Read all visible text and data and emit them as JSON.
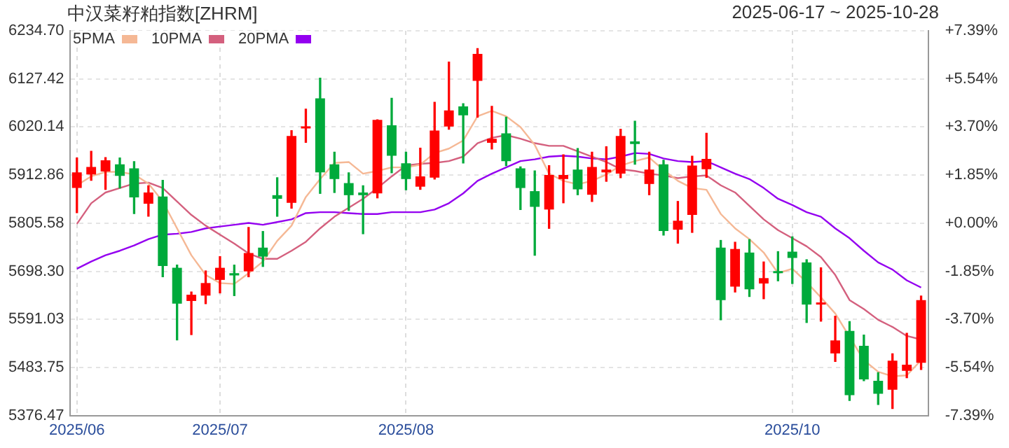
{
  "chart_data": {
    "type": "candlestick",
    "title": "中汉菜籽粕指数[ZHRM]",
    "subtitle": "2025-06-17 ~ 2025-10-28",
    "categories": [
      "2025/06",
      null,
      null,
      null,
      null,
      null,
      null,
      null,
      null,
      null,
      "2025/07",
      null,
      null,
      null,
      null,
      null,
      null,
      null,
      null,
      null,
      null,
      null,
      null,
      "2025/08",
      null,
      null,
      null,
      null,
      null,
      null,
      null,
      null,
      null,
      null,
      null,
      null,
      null,
      null,
      null,
      null,
      null,
      null,
      null,
      null,
      null,
      null,
      null,
      null,
      null,
      null,
      "2025/10",
      null,
      null,
      null,
      null,
      null,
      null,
      null,
      null,
      null
    ],
    "ohlc": [
      [
        5884,
        5951,
        5829,
        5919
      ],
      [
        5914,
        5966,
        5901,
        5931
      ],
      [
        5921,
        5952,
        5881,
        5946
      ],
      [
        5937,
        5951,
        5884,
        5911
      ],
      [
        5928,
        5943,
        5827,
        5863
      ],
      [
        5849,
        5889,
        5821,
        5874
      ],
      [
        5865,
        5901,
        5686,
        5710
      ],
      [
        5706,
        5712,
        5545,
        5626
      ],
      [
        5632,
        5652,
        5557,
        5646
      ],
      [
        5644,
        5699,
        5626,
        5672
      ],
      [
        5679,
        5731,
        5650,
        5706
      ],
      [
        5694,
        5712,
        5644,
        5689
      ],
      [
        5698,
        5796,
        5686,
        5739
      ],
      [
        5751,
        5787,
        5709,
        5731
      ],
      [
        5868,
        5907,
        5821,
        5860
      ],
      [
        5851,
        6012,
        5839,
        6000
      ],
      [
        6017,
        6060,
        5986,
        6019
      ],
      [
        6084,
        6129,
        5872,
        5919
      ],
      [
        5937,
        5964,
        5874,
        5904
      ],
      [
        5895,
        5918,
        5834,
        5868
      ],
      [
        5874,
        5889,
        5782,
        5868
      ],
      [
        5872,
        6036,
        5862,
        6036
      ],
      [
        6024,
        6084,
        5918,
        5956
      ],
      [
        5939,
        5964,
        5880,
        5904
      ],
      [
        5887,
        5973,
        5881,
        5910
      ],
      [
        5907,
        6075,
        5904,
        6012
      ],
      [
        6021,
        6165,
        6015,
        6057
      ],
      [
        6066,
        6072,
        5940,
        6046
      ],
      [
        6123,
        6195,
        6042,
        6183
      ],
      [
        5985,
        6066,
        5971,
        5994
      ],
      [
        6006,
        6042,
        5934,
        5944
      ],
      [
        5928,
        5931,
        5836,
        5884
      ],
      [
        5877,
        5922,
        5734,
        5842
      ],
      [
        5836,
        5934,
        5794,
        5913
      ],
      [
        5904,
        5958,
        5851,
        5913
      ],
      [
        5925,
        5972,
        5869,
        5881
      ],
      [
        5869,
        5964,
        5854,
        5931
      ],
      [
        5919,
        5976,
        5899,
        5925
      ],
      [
        5916,
        6015,
        5907,
        6000
      ],
      [
        5988,
        6033,
        5937,
        5982
      ],
      [
        5893,
        5964,
        5869,
        5925
      ],
      [
        5937,
        5946,
        5779,
        5788
      ],
      [
        5791,
        5854,
        5761,
        5811
      ],
      [
        5824,
        5955,
        5785,
        5934
      ],
      [
        5926,
        6006,
        5908,
        5949
      ],
      [
        5751,
        5767,
        5590,
        5634
      ],
      [
        5664,
        5763,
        5652,
        5748
      ],
      [
        5740,
        5769,
        5642,
        5658
      ],
      [
        5671,
        5719,
        5637,
        5683
      ],
      [
        5697,
        5742,
        5677,
        5694
      ],
      [
        5742,
        5775,
        5671,
        5728
      ],
      [
        5718,
        5724,
        5584,
        5624
      ],
      [
        5624,
        5706,
        5587,
        5626
      ],
      [
        5515,
        5598,
        5497,
        5544
      ],
      [
        5565,
        5586,
        5410,
        5422
      ],
      [
        5532,
        5556,
        5454,
        5457
      ],
      [
        5454,
        5472,
        5401,
        5425
      ],
      [
        5434,
        5514,
        5392,
        5499
      ],
      [
        5476,
        5560,
        5461,
        5490
      ],
      [
        5494,
        5643,
        5479,
        5634
      ]
    ],
    "series": [
      {
        "name": "5PMA",
        "type": "line",
        "color": "#f5b895",
        "values": [
          5890,
          5910,
          5920,
          5920,
          5914,
          5894,
          5854,
          5794,
          5734,
          5690,
          5672,
          5670,
          5694,
          5720,
          5766,
          5800,
          5864,
          5904,
          5940,
          5942,
          5916,
          5922,
          5930,
          5930,
          5936,
          5962,
          5972,
          5990,
          6044,
          6056,
          6044,
          6020,
          5980,
          5916,
          5900,
          5892,
          5900,
          5914,
          5934,
          5944,
          5952,
          5924,
          5900,
          5884,
          5880,
          5826,
          5794,
          5770,
          5740,
          5694,
          5704,
          5674,
          5640,
          5604,
          null,
          5500,
          5474,
          5464,
          5466,
          5500
        ]
      },
      {
        "name": "10PMA",
        "type": "line",
        "color": "#d4607e",
        "values": [
          5804,
          5850,
          5874,
          5884,
          5894,
          5896,
          5884,
          5854,
          5824,
          5800,
          5780,
          5760,
          5738,
          5726,
          5726,
          5744,
          5764,
          5794,
          5820,
          5840,
          5860,
          5884,
          5910,
          5934,
          5938,
          5940,
          5944,
          5954,
          5984,
          5996,
          6002,
          5994,
          5984,
          5978,
          5978,
          5966,
          5954,
          5942,
          5926,
          5922,
          5916,
          5912,
          5906,
          5910,
          5912,
          5890,
          5874,
          5844,
          5814,
          5790,
          5772,
          5754,
          5730,
          5690,
          5634,
          5614,
          5590,
          5574,
          5554,
          5546
        ]
      },
      {
        "name": "20PMA",
        "type": "line",
        "color": "#9400f0",
        "values": [
          5704,
          5720,
          5734,
          5744,
          5756,
          5770,
          5780,
          5782,
          5786,
          5794,
          5798,
          5802,
          5806,
          5802,
          5808,
          5814,
          5828,
          5830,
          5830,
          5828,
          5826,
          5826,
          5830,
          5830,
          5830,
          5836,
          5850,
          5872,
          5900,
          5916,
          5930,
          5944,
          5948,
          5954,
          5956,
          5954,
          5950,
          5948,
          5954,
          5962,
          5960,
          5950,
          5944,
          5942,
          5944,
          5930,
          5916,
          5904,
          5884,
          5860,
          5846,
          5830,
          5820,
          5794,
          5772,
          5744,
          5718,
          5702,
          5678,
          5662
        ]
      }
    ],
    "ylim": [
      5376.47,
      6234.7
    ],
    "yticks": [
      {
        "value": 5376.47,
        "label": "5376.47"
      },
      {
        "value": 5483.75,
        "label": "5483.75"
      },
      {
        "value": 5591.03,
        "label": "5591.03"
      },
      {
        "value": 5698.3,
        "label": "5698.30"
      },
      {
        "value": 5805.58,
        "label": "5805.58"
      },
      {
        "value": 5912.86,
        "label": "5912.86"
      },
      {
        "value": 6020.14,
        "label": "6020.14"
      },
      {
        "value": 6127.42,
        "label": "6127.42"
      },
      {
        "value": 6234.7,
        "label": "6234.70"
      }
    ],
    "y2lim": [
      -7.39,
      7.39
    ],
    "y2ticks": [
      {
        "value": -7.39,
        "label": "-7.39%"
      },
      {
        "value": -5.54,
        "label": "-5.54%"
      },
      {
        "value": -3.7,
        "label": "-3.70%"
      },
      {
        "value": -1.85,
        "label": "-1.85%"
      },
      {
        "value": 0,
        "label": "+0.00%"
      },
      {
        "value": 1.85,
        "label": "+1.85%"
      },
      {
        "value": 3.7,
        "label": "+3.70%"
      },
      {
        "value": 5.54,
        "label": "+5.54%"
      },
      {
        "value": 7.39,
        "label": "+7.39%"
      }
    ],
    "grid": true,
    "legend": "top left"
  }
}
